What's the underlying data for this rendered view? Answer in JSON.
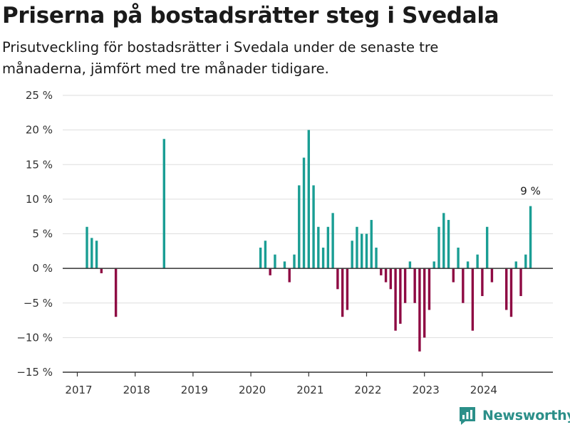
{
  "header": {
    "title": "Priserna på bostadsrätter steg i Svedala",
    "subtitle": "Prisutveckling för bostadsrätter i Svedala under de senaste tre månaderna, jämfört med tre månader tidigare."
  },
  "brand": {
    "name": "Newsworthy",
    "icon": "newsworthy-logo-icon",
    "color": "#2b8f89"
  },
  "chart_data": {
    "type": "bar",
    "title": "",
    "xlabel": "",
    "ylabel": "",
    "ylim": [
      -15,
      25
    ],
    "y_ticks": [
      25,
      20,
      15,
      10,
      5,
      0,
      -5,
      -10,
      -15
    ],
    "y_tick_labels": [
      "25 %",
      "20 %",
      "15 %",
      "10 %",
      "5 %",
      "0 %",
      "−5 %",
      "−10 %",
      "−15 %"
    ],
    "x_ticks": [
      "2017",
      "2018",
      "2019",
      "2020",
      "2021",
      "2022",
      "2023",
      "2024"
    ],
    "grid": true,
    "colors": {
      "positive": "#1a9e94",
      "negative": "#8e0a43",
      "grid": "#dddddd",
      "axis": "#333333"
    },
    "annotation": {
      "date": "2024-11",
      "text": "9 %"
    },
    "series": [
      {
        "x": [
          "2017-03",
          "2017-04",
          "2017-05",
          "2017-06",
          "2017-09",
          "2018-07",
          "2020-03",
          "2020-04",
          "2020-05",
          "2020-06",
          "2020-08",
          "2020-09",
          "2020-10",
          "2020-11",
          "2020-12",
          "2021-01",
          "2021-02",
          "2021-03",
          "2021-04",
          "2021-05",
          "2021-06",
          "2021-07",
          "2021-08",
          "2021-09",
          "2021-10",
          "2021-11",
          "2021-12",
          "2022-01",
          "2022-02",
          "2022-03",
          "2022-04",
          "2022-05",
          "2022-06",
          "2022-07",
          "2022-08",
          "2022-09",
          "2022-10",
          "2022-11",
          "2022-12",
          "2023-01",
          "2023-02",
          "2023-03",
          "2023-04",
          "2023-05",
          "2023-06",
          "2023-07",
          "2023-08",
          "2023-09",
          "2023-10",
          "2023-11",
          "2023-12",
          "2024-01",
          "2024-02",
          "2024-03",
          "2024-04",
          "2024-06",
          "2024-07",
          "2024-08",
          "2024-09",
          "2024-10",
          "2024-11"
        ],
        "values": [
          6,
          4.4,
          4,
          -0.7,
          -7,
          18.7,
          3,
          4,
          -1,
          2,
          1,
          -2,
          2,
          12,
          16,
          20,
          12,
          6,
          3,
          6,
          8,
          -3,
          -7,
          -6,
          4,
          6,
          5,
          5,
          7,
          3,
          -1,
          -2,
          -3,
          -9,
          -8,
          -5,
          1,
          -5,
          -12,
          -10,
          -6,
          1,
          6,
          8,
          7,
          -2,
          3,
          -5,
          1,
          -9,
          2,
          -4,
          6,
          -2,
          0,
          -6,
          -7,
          1,
          -4,
          2,
          9
        ]
      }
    ]
  }
}
